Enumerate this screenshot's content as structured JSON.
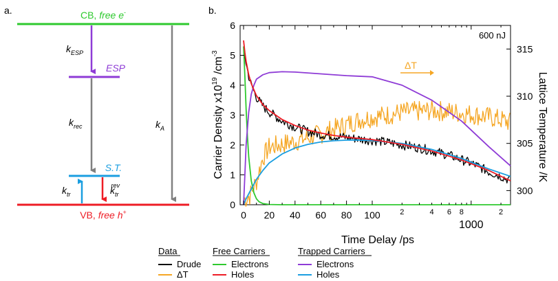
{
  "panel_a": {
    "label": "a.",
    "cb_label": "CB, ",
    "cb_italic": "free e",
    "cb_sup": "-",
    "vb_label": "VB, ",
    "vb_italic": "free h",
    "vb_sup": "+",
    "esp_label": "ESP",
    "st_label": "S.T.",
    "k_esp": "k",
    "k_esp_sub": "ESP",
    "k_rec": "k",
    "k_rec_sub": "rec",
    "k_a": "k",
    "k_a_sub": "A",
    "k_tr": "k",
    "k_tr_sub": "tr",
    "k_trrev": "k",
    "k_trrev_sub": "tr",
    "k_trrev_sup": "rev",
    "colors": {
      "cb": "#2ec92e",
      "vb": "#ee1c25",
      "esp": "#8e3bd6",
      "st": "#1a9ee0",
      "gray": "#808080"
    }
  },
  "panel_b": {
    "label": "b.",
    "energy_label": "600 nJ",
    "dT_label": "ΔT"
  },
  "chart_data": {
    "type": "line",
    "title": "",
    "xlabel": "Time Delay /ps",
    "ylabel_left_prefix": "Carrier Density x10",
    "ylabel_left_sup": "19",
    "ylabel_left_suffix": " /cm",
    "ylabel_left_sup2": "-3",
    "ylabel_right": "Lattice Temperature /K",
    "x_ticks_linear": [
      "0",
      "20",
      "40",
      "60",
      "80",
      "100"
    ],
    "x_ticks_log": [
      "2",
      "4",
      "6",
      "8",
      "1000",
      "2"
    ],
    "y_ticks": [
      "0",
      "1",
      "2",
      "3",
      "4",
      "5",
      "6"
    ],
    "y_right_ticks": [
      "300",
      "305",
      "310",
      "315"
    ],
    "ylim": [
      0,
      6
    ],
    "y_right_lim": [
      298.5,
      317.5
    ],
    "series": [
      {
        "key": "drude",
        "color": "#000000",
        "x": [
          0,
          1,
          2,
          4,
          6,
          10,
          15,
          20,
          30,
          40,
          50,
          60,
          70,
          80,
          90,
          100,
          200,
          400,
          800,
          1500,
          2500
        ],
        "y": [
          5.3,
          5.0,
          4.7,
          4.3,
          4.0,
          3.6,
          3.3,
          3.1,
          2.8,
          2.6,
          2.45,
          2.35,
          2.3,
          2.25,
          2.2,
          2.15,
          2.0,
          1.8,
          1.5,
          1.1,
          0.8
        ]
      },
      {
        "key": "holes_free",
        "color": "#ee1c25",
        "x": [
          0,
          1,
          2,
          4,
          6,
          10,
          15,
          20,
          30,
          40,
          50,
          60,
          70,
          80,
          90,
          100,
          200,
          400,
          800,
          1500,
          2500
        ],
        "y": [
          5.5,
          5.1,
          4.8,
          4.35,
          4.05,
          3.65,
          3.35,
          3.15,
          2.85,
          2.65,
          2.5,
          2.4,
          2.32,
          2.26,
          2.22,
          2.18,
          2.02,
          1.8,
          1.5,
          1.15,
          0.8
        ]
      },
      {
        "key": "electrons_free",
        "color": "#2ec92e",
        "x": [
          0,
          1,
          2,
          3,
          4,
          6,
          8,
          10,
          12,
          15,
          20,
          30,
          50,
          100,
          2500
        ],
        "y": [
          5.3,
          4.3,
          3.2,
          2.3,
          1.6,
          0.8,
          0.4,
          0.2,
          0.1,
          0.04,
          0.01,
          0,
          0,
          0,
          0
        ]
      },
      {
        "key": "electrons_trapped",
        "color": "#8e3bd6",
        "x": [
          0,
          1,
          2,
          4,
          6,
          8,
          10,
          15,
          20,
          30,
          40,
          60,
          80,
          100,
          200,
          400,
          800,
          1500,
          2500
        ],
        "y": [
          0,
          1.0,
          2.0,
          3.1,
          3.7,
          4.0,
          4.2,
          4.35,
          4.42,
          4.45,
          4.44,
          4.38,
          4.32,
          4.28,
          4.0,
          3.5,
          2.8,
          1.95,
          1.3
        ]
      },
      {
        "key": "holes_trapped",
        "color": "#1a9ee0",
        "x": [
          0,
          2,
          5,
          10,
          15,
          20,
          30,
          40,
          50,
          60,
          70,
          80,
          90,
          100,
          200,
          400,
          800,
          1500,
          2500
        ],
        "y": [
          0,
          0.2,
          0.45,
          0.85,
          1.15,
          1.4,
          1.7,
          1.9,
          2.02,
          2.1,
          2.14,
          2.16,
          2.16,
          2.15,
          2.05,
          1.85,
          1.55,
          1.2,
          0.95
        ]
      },
      {
        "key": "dT",
        "color": "#f5a623",
        "axis": "right",
        "x": [
          0,
          5,
          10,
          15,
          20,
          30,
          40,
          50,
          60,
          70,
          80,
          90,
          100,
          200,
          400,
          800,
          1500,
          2500
        ],
        "y": [
          299,
          299.5,
          301,
          303.5,
          304.6,
          304.9,
          305.2,
          305.6,
          306,
          306.5,
          307,
          307.5,
          307.8,
          308.3,
          308.5,
          308.2,
          307.8,
          307.2
        ]
      }
    ]
  },
  "legend": {
    "data_header": "Data",
    "free_header": "Free Carriers",
    "trapped_header": "Trapped Carriers",
    "drude": "Drude",
    "dT": "ΔT",
    "free_electrons": "Electrons",
    "free_holes": "Holes",
    "trapped_electrons": "Electrons",
    "trapped_holes": "Holes"
  }
}
